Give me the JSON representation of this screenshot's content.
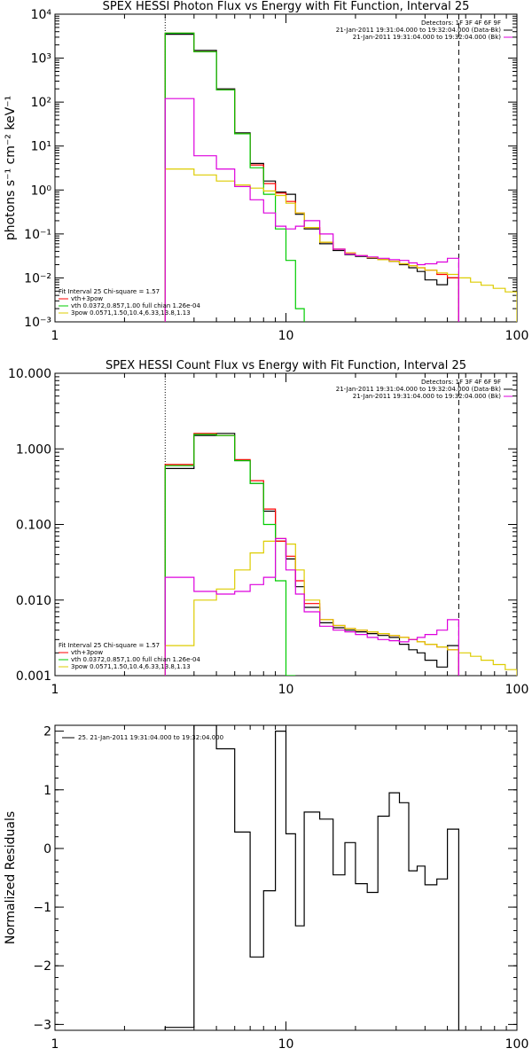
{
  "chart_data": [
    {
      "type": "line",
      "title": "SPEX HESSI Photon Flux vs Energy with Fit Function, Interval 25",
      "xlabel": "",
      "ylabel": "photons s⁻¹ cm⁻² keV⁻¹",
      "x_scale": "log",
      "y_scale": "log",
      "xlim": [
        1,
        100
      ],
      "ylim": [
        0.001,
        10000
      ],
      "x_ticks": [
        1,
        10,
        100
      ],
      "x_tick_labels": [
        "1",
        "10",
        "100"
      ],
      "y_ticks": [
        0.001,
        0.01,
        0.1,
        1,
        10,
        100,
        1000,
        10000
      ],
      "y_tick_labels": [
        "10⁻³",
        "10⁻²",
        "10⁻¹",
        "10⁰",
        "10¹",
        "10²",
        "10³",
        "10⁴"
      ],
      "vlines": [
        {
          "x": 3.0,
          "style": "dotted"
        },
        {
          "x": 56,
          "style": "dashed"
        }
      ],
      "legend_top": [
        "Detectors: 1F 3F 4F 6F 9F",
        "21-Jan-2011 19:31:04.000 to 19:32:04.000 (Data-Bk)",
        "21-Jan-2011 19:31:04.000 to 19:32:04.000 (Bk)"
      ],
      "legend_bottom": [
        "Fit Interval 25   Chi-square = 1.57",
        "vth+3pow",
        "vth 0.0372,0.857,1.00  full chian 1.26e-04",
        "3pow 0.0571,1.50,10.4,6.33,13.8,1.13"
      ],
      "series": [
        {
          "name": "21-Jan-2011 19:31:04.000 to 19:32:04.000 (Data-Bk)",
          "color": "#000000",
          "bin_edges": [
            3,
            4,
            5,
            6,
            7,
            8,
            9,
            10,
            11,
            12,
            14,
            16,
            18,
            20,
            22.5,
            25,
            28,
            31,
            34,
            37,
            40,
            45,
            50,
            56
          ],
          "values": [
            3500,
            1500,
            200,
            20,
            4,
            1.6,
            0.9,
            0.8,
            0.28,
            0.13,
            0.06,
            0.042,
            0.034,
            0.031,
            0.028,
            0.026,
            0.024,
            0.02,
            0.017,
            0.014,
            0.009,
            0.007,
            0.01
          ]
        },
        {
          "name": "vth+3pow",
          "color": "#ff0000",
          "bin_edges": [
            3,
            4,
            5,
            6,
            7,
            8,
            9,
            10,
            11,
            12,
            14,
            16,
            18,
            20,
            22.5,
            25,
            28,
            31,
            34,
            37,
            40,
            45,
            50,
            56
          ],
          "values": [
            3700,
            1400,
            190,
            19,
            3.7,
            1.4,
            0.85,
            0.55,
            0.3,
            0.14,
            0.065,
            0.045,
            0.037,
            0.032,
            0.029,
            0.026,
            0.024,
            0.021,
            0.019,
            0.017,
            0.015,
            0.012,
            0.01
          ]
        },
        {
          "name": "vth 0.0372,0.857,1.00  full chian 1.26e-04",
          "color": "#00cc00",
          "bin_edges": [
            3,
            4,
            5,
            6,
            7,
            8,
            9,
            10,
            11,
            12
          ],
          "values": [
            3700,
            1400,
            190,
            19,
            3.2,
            0.8,
            0.13,
            0.025,
            0.002
          ]
        },
        {
          "name": "3pow 0.0571,1.50,10.4,6.33,13.8,1.13",
          "color": "#ddcc00",
          "bin_edges": [
            3,
            4,
            5,
            6,
            7,
            8,
            9,
            10,
            11,
            12,
            14,
            16,
            18,
            20,
            22.5,
            25,
            28,
            31,
            34,
            37,
            40,
            45,
            50,
            56,
            63,
            70,
            79,
            89,
            100
          ],
          "values": [
            3,
            2.2,
            1.6,
            1.3,
            1.1,
            0.95,
            0.75,
            0.5,
            0.3,
            0.14,
            0.065,
            0.045,
            0.037,
            0.032,
            0.029,
            0.026,
            0.024,
            0.021,
            0.019,
            0.017,
            0.015,
            0.013,
            0.012,
            0.01,
            0.008,
            0.0068,
            0.0058,
            0.0048
          ]
        },
        {
          "name": "21-Jan-2011 19:31:04.000 to 19:32:04.000 (Bk)",
          "color": "#dd00dd",
          "bin_edges": [
            3,
            4,
            5,
            6,
            7,
            8,
            9,
            10,
            11,
            12,
            14,
            16,
            18,
            20,
            22.5,
            25,
            28,
            31,
            34,
            37,
            40,
            45,
            50,
            56
          ],
          "values": [
            120,
            6,
            3,
            1.2,
            0.6,
            0.3,
            0.15,
            0.13,
            0.15,
            0.2,
            0.1,
            0.045,
            0.035,
            0.032,
            0.03,
            0.028,
            0.026,
            0.025,
            0.022,
            0.02,
            0.021,
            0.023,
            0.028
          ]
        }
      ]
    },
    {
      "type": "line",
      "title": "SPEX HESSI Count Flux vs Energy with Fit Function, Interval 25",
      "xlabel": "",
      "ylabel": "",
      "x_scale": "log",
      "y_scale": "log",
      "xlim": [
        1,
        100
      ],
      "ylim": [
        0.001,
        10
      ],
      "x_ticks": [
        1,
        10,
        100
      ],
      "x_tick_labels": [
        "1",
        "10",
        "100"
      ],
      "y_ticks": [
        0.001,
        0.01,
        0.1,
        1,
        10
      ],
      "y_tick_labels": [
        "0.001",
        "0.010",
        "0.100",
        "1.000",
        "10.000"
      ],
      "vlines": [
        {
          "x": 3.0,
          "style": "dotted"
        },
        {
          "x": 56,
          "style": "dashed"
        }
      ],
      "legend_top": [
        "Detectors: 1F 3F 4F 6F 9F",
        "21-Jan-2011 19:31:04.000 to 19:32:04.000 (Data-Bk)",
        "21-Jan-2011 19:31:04.000 to 19:32:04.000 (Bk)"
      ],
      "legend_bottom": [
        "Fit Interval 25   Chi-square = 1.57",
        "vth+3pow",
        "vth 0.0372,0.857,1.00  full chian 1.26e-04",
        "3pow 0.0571,1.50,10.4,6.33,13.8,1.13"
      ],
      "series": [
        {
          "name": "21-Jan-2011 19:31:04.000 to 19:32:04.000 (Data-Bk)",
          "color": "#000000",
          "bin_edges": [
            3,
            4,
            5,
            6,
            7,
            8,
            9,
            10,
            11,
            12,
            14,
            16,
            18,
            20,
            22.5,
            25,
            28,
            31,
            34,
            37,
            40,
            45,
            50,
            56
          ],
          "values": [
            0.55,
            1.5,
            1.6,
            0.7,
            0.35,
            0.15,
            0.06,
            0.035,
            0.015,
            0.008,
            0.005,
            0.0043,
            0.004,
            0.0038,
            0.0036,
            0.0034,
            0.0032,
            0.0026,
            0.0022,
            0.002,
            0.0016,
            0.0013,
            0.0025
          ]
        },
        {
          "name": "vth+3pow",
          "color": "#ff0000",
          "bin_edges": [
            3,
            4,
            5,
            6,
            7,
            8,
            9,
            10,
            11,
            12,
            14,
            16,
            18,
            20,
            22.5,
            25,
            28,
            31,
            34,
            37,
            40,
            45,
            50,
            56
          ],
          "values": [
            0.62,
            1.6,
            1.5,
            0.72,
            0.38,
            0.16,
            0.06,
            0.038,
            0.018,
            0.009,
            0.0055,
            0.0046,
            0.0042,
            0.004,
            0.0038,
            0.0036,
            0.0034,
            0.0032,
            0.003,
            0.0028,
            0.0026,
            0.0024,
            0.0022
          ]
        },
        {
          "name": "vth 0.0372,0.857,1.00  full chian 1.26e-04",
          "color": "#00cc00",
          "bin_edges": [
            3,
            4,
            5,
            6,
            7,
            8,
            9,
            10,
            11
          ],
          "values": [
            0.6,
            1.55,
            1.5,
            0.7,
            0.35,
            0.1,
            0.018,
            0.001
          ]
        },
        {
          "name": "3pow 0.0571,1.50,10.4,6.33,13.8,1.13",
          "color": "#ddcc00",
          "bin_edges": [
            3,
            4,
            5,
            6,
            7,
            8,
            9,
            10,
            11,
            12,
            14,
            16,
            18,
            20,
            22.5,
            25,
            28,
            31,
            34,
            37,
            40,
            45,
            50,
            56,
            63,
            70,
            79,
            89,
            100
          ],
          "values": [
            0.0025,
            0.01,
            0.014,
            0.025,
            0.042,
            0.06,
            0.065,
            0.055,
            0.025,
            0.01,
            0.0055,
            0.0046,
            0.0042,
            0.004,
            0.0038,
            0.0036,
            0.0034,
            0.0032,
            0.003,
            0.0028,
            0.0026,
            0.0024,
            0.0022,
            0.002,
            0.0018,
            0.0016,
            0.0014,
            0.0012
          ]
        },
        {
          "name": "21-Jan-2011 19:31:04.000 to 19:32:04.000 (Bk)",
          "color": "#dd00dd",
          "bin_edges": [
            3,
            4,
            5,
            6,
            7,
            8,
            9,
            10,
            11,
            12,
            14,
            16,
            18,
            20,
            22.5,
            25,
            28,
            31,
            34,
            37,
            40,
            45,
            50,
            56
          ],
          "values": [
            0.02,
            0.013,
            0.012,
            0.013,
            0.016,
            0.02,
            0.065,
            0.025,
            0.012,
            0.007,
            0.0045,
            0.004,
            0.0038,
            0.0035,
            0.0032,
            0.003,
            0.0029,
            0.0028,
            0.003,
            0.0032,
            0.0035,
            0.004,
            0.0055
          ]
        }
      ]
    },
    {
      "type": "line",
      "title": "",
      "xlabel": "",
      "ylabel": "Normalized Residuals",
      "x_scale": "log",
      "y_scale": "linear",
      "xlim": [
        1,
        100
      ],
      "ylim": [
        -3.1,
        2.1
      ],
      "x_ticks": [
        1,
        10,
        100
      ],
      "x_tick_labels": [
        "1",
        "10",
        "100"
      ],
      "y_ticks": [
        -3,
        -2,
        -1,
        0,
        1,
        2
      ],
      "y_tick_labels": [
        "−3",
        "−2",
        "−1",
        "0",
        "1",
        "2"
      ],
      "legend_top": [
        "25. 21-Jan-2011 19:31:04.000 to 19:32:04.000"
      ],
      "series": [
        {
          "name": "25. 21-Jan-2011 19:31:04.000 to 19:32:04.000",
          "color": "#000000",
          "bin_edges": [
            3,
            4,
            5,
            6,
            7,
            8,
            9,
            10,
            11,
            12,
            14,
            16,
            18,
            20,
            22.5,
            25,
            28,
            31,
            34,
            37,
            40,
            45,
            50,
            56
          ],
          "values": [
            -3.05,
            2.1,
            1.7,
            0.28,
            -1.85,
            -0.72,
            2.0,
            0.25,
            -1.32,
            0.62,
            0.5,
            -0.45,
            0.1,
            -0.6,
            -0.75,
            0.55,
            0.95,
            0.78,
            -0.38,
            -0.3,
            -0.62,
            -0.52,
            0.33
          ]
        }
      ]
    }
  ]
}
